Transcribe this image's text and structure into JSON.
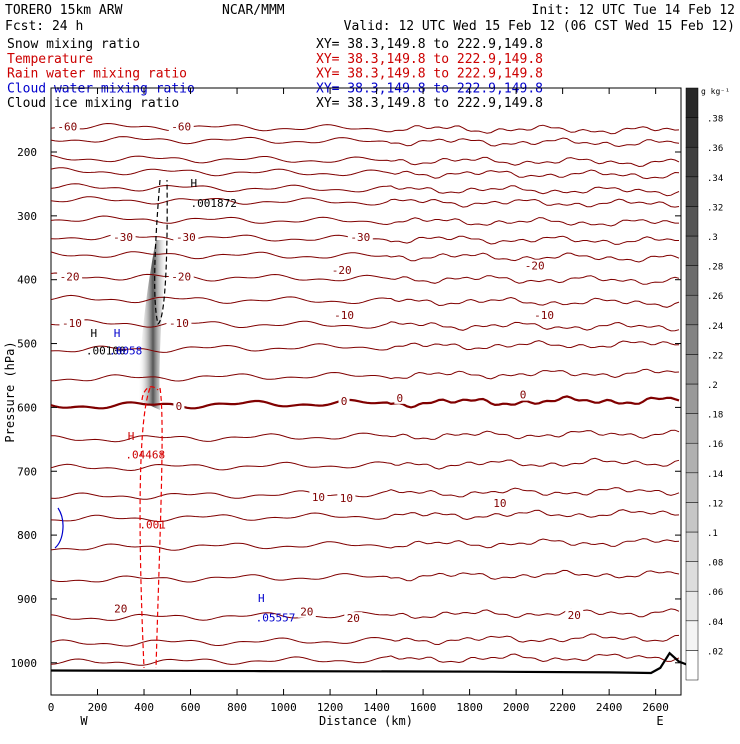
{
  "header": {
    "model": "TORERO  15km ARW",
    "center": "NCAR/MMM",
    "init": "Init: 12 UTC Tue 14 Feb 12",
    "fcst": "Fcst:   24 h",
    "valid": "Valid: 12 UTC Wed 15 Feb 12 (06 CST Wed 15 Feb 12)"
  },
  "legend": [
    {
      "label": "Snow mixing ratio",
      "xy": "XY=  38.3,149.8 to 222.9,149.8",
      "color": "#000000"
    },
    {
      "label": "Temperature",
      "xy": "XY=  38.3,149.8 to 222.9,149.8",
      "color": "#cc0000"
    },
    {
      "label": "Rain water mixing ratio",
      "xy": "XY=  38.3,149.8 to 222.9,149.8",
      "color": "#cc0000"
    },
    {
      "label": "Cloud water mixing ratio",
      "xy": "XY=  38.3,149.8 to 222.9,149.8",
      "color": "#0000cc"
    },
    {
      "label": "Cloud ice mixing ratio",
      "xy": "XY=  38.3,149.8 to 222.9,149.8",
      "color": "#000000"
    }
  ],
  "colors": {
    "temperature": "#800000",
    "rain": "#ee0000",
    "cloud_water": "#0000cc",
    "ice": "#000000",
    "terrain": "#000000"
  },
  "colorbar": {
    "unit": "g kg⁻¹",
    "ticks": [
      ".02",
      ".04",
      ".06",
      ".08",
      ".1",
      ".12",
      ".14",
      ".16",
      ".18",
      ".2",
      ".22",
      ".24",
      ".26",
      ".28",
      ".3",
      ".32",
      ".34",
      ".36",
      ".38"
    ]
  },
  "chart_data": {
    "type": "cross-section",
    "xlabel": "Distance (km)",
    "ylabel": "Pressure (hPa)",
    "xlim": [
      0,
      2750
    ],
    "ylim": [
      1050,
      100
    ],
    "xticks": [
      0,
      200,
      400,
      600,
      800,
      1000,
      1200,
      1400,
      1600,
      1800,
      2000,
      2200,
      2400,
      2600
    ],
    "yticks": [
      200,
      300,
      400,
      500,
      600,
      700,
      800,
      900,
      1000
    ],
    "x_end_labels": {
      "left": "W",
      "right": "E"
    },
    "isotherm_pressures": [
      1000,
      970,
      930,
      870,
      820,
      775,
      740,
      695,
      650,
      598,
      555,
      510,
      468,
      430,
      395,
      360,
      333,
      305,
      275,
      255,
      230,
      210,
      180,
      160
    ],
    "isotherm_labels": [
      {
        "text": "-60",
        "x": 70,
        "p": 160
      },
      {
        "text": "-60",
        "x": 560,
        "p": 160
      },
      {
        "text": "-30",
        "x": 310,
        "p": 333
      },
      {
        "text": "-30",
        "x": 580,
        "p": 333
      },
      {
        "text": "-30",
        "x": 1330,
        "p": 333
      },
      {
        "text": "-20",
        "x": 80,
        "p": 395
      },
      {
        "text": "-20",
        "x": 560,
        "p": 395
      },
      {
        "text": "-20",
        "x": 1250,
        "p": 385
      },
      {
        "text": "-20",
        "x": 2080,
        "p": 378
      },
      {
        "text": "-10",
        "x": 90,
        "p": 468
      },
      {
        "text": "-10",
        "x": 550,
        "p": 468
      },
      {
        "text": "-10",
        "x": 1260,
        "p": 455
      },
      {
        "text": "-10",
        "x": 2120,
        "p": 455
      },
      {
        "text": "0",
        "x": 550,
        "p": 598
      },
      {
        "text": "0",
        "x": 1260,
        "p": 590
      },
      {
        "text": "0",
        "x": 1500,
        "p": 585
      },
      {
        "text": "0",
        "x": 2030,
        "p": 580
      },
      {
        "text": "10",
        "x": 1150,
        "p": 740
      },
      {
        "text": "10",
        "x": 1270,
        "p": 742
      },
      {
        "text": "10",
        "x": 1930,
        "p": 750
      },
      {
        "text": "20",
        "x": 300,
        "p": 915
      },
      {
        "text": "20",
        "x": 1100,
        "p": 920
      },
      {
        "text": "20",
        "x": 1300,
        "p": 930
      },
      {
        "text": "20",
        "x": 2250,
        "p": 925
      }
    ],
    "maxima": [
      {
        "text": "H",
        "x": 600,
        "p": 255,
        "color": "black"
      },
      {
        "text": ".001872",
        "x": 600,
        "p": 286,
        "color": "black"
      },
      {
        "text": "H",
        "x": 170,
        "p": 490,
        "color": "black"
      },
      {
        "text": ".00100",
        "x": 150,
        "p": 517,
        "color": "black"
      },
      {
        "text": "H",
        "x": 270,
        "p": 490,
        "color": "blue"
      },
      {
        "text": ".0058",
        "x": 250,
        "p": 517,
        "color": "blue"
      },
      {
        "text": "H",
        "x": 330,
        "p": 651,
        "color": "red"
      },
      {
        "text": ".04468",
        "x": 320,
        "p": 680,
        "color": "red"
      },
      {
        "text": ".001",
        "x": 380,
        "p": 790,
        "color": "red"
      },
      {
        "text": "H",
        "x": 890,
        "p": 905,
        "color": "blue"
      },
      {
        "text": ".05557",
        "x": 880,
        "p": 935,
        "color": "blue"
      }
    ],
    "terrain": [
      {
        "x": 0,
        "p": 1012
      },
      {
        "x": 900,
        "p": 1013
      },
      {
        "x": 1900,
        "p": 1014
      },
      {
        "x": 2400,
        "p": 1015
      },
      {
        "x": 2580,
        "p": 1016
      },
      {
        "x": 2620,
        "p": 1008
      },
      {
        "x": 2660,
        "p": 985
      },
      {
        "x": 2700,
        "p": 998
      },
      {
        "x": 2750,
        "p": 1005
      }
    ]
  }
}
